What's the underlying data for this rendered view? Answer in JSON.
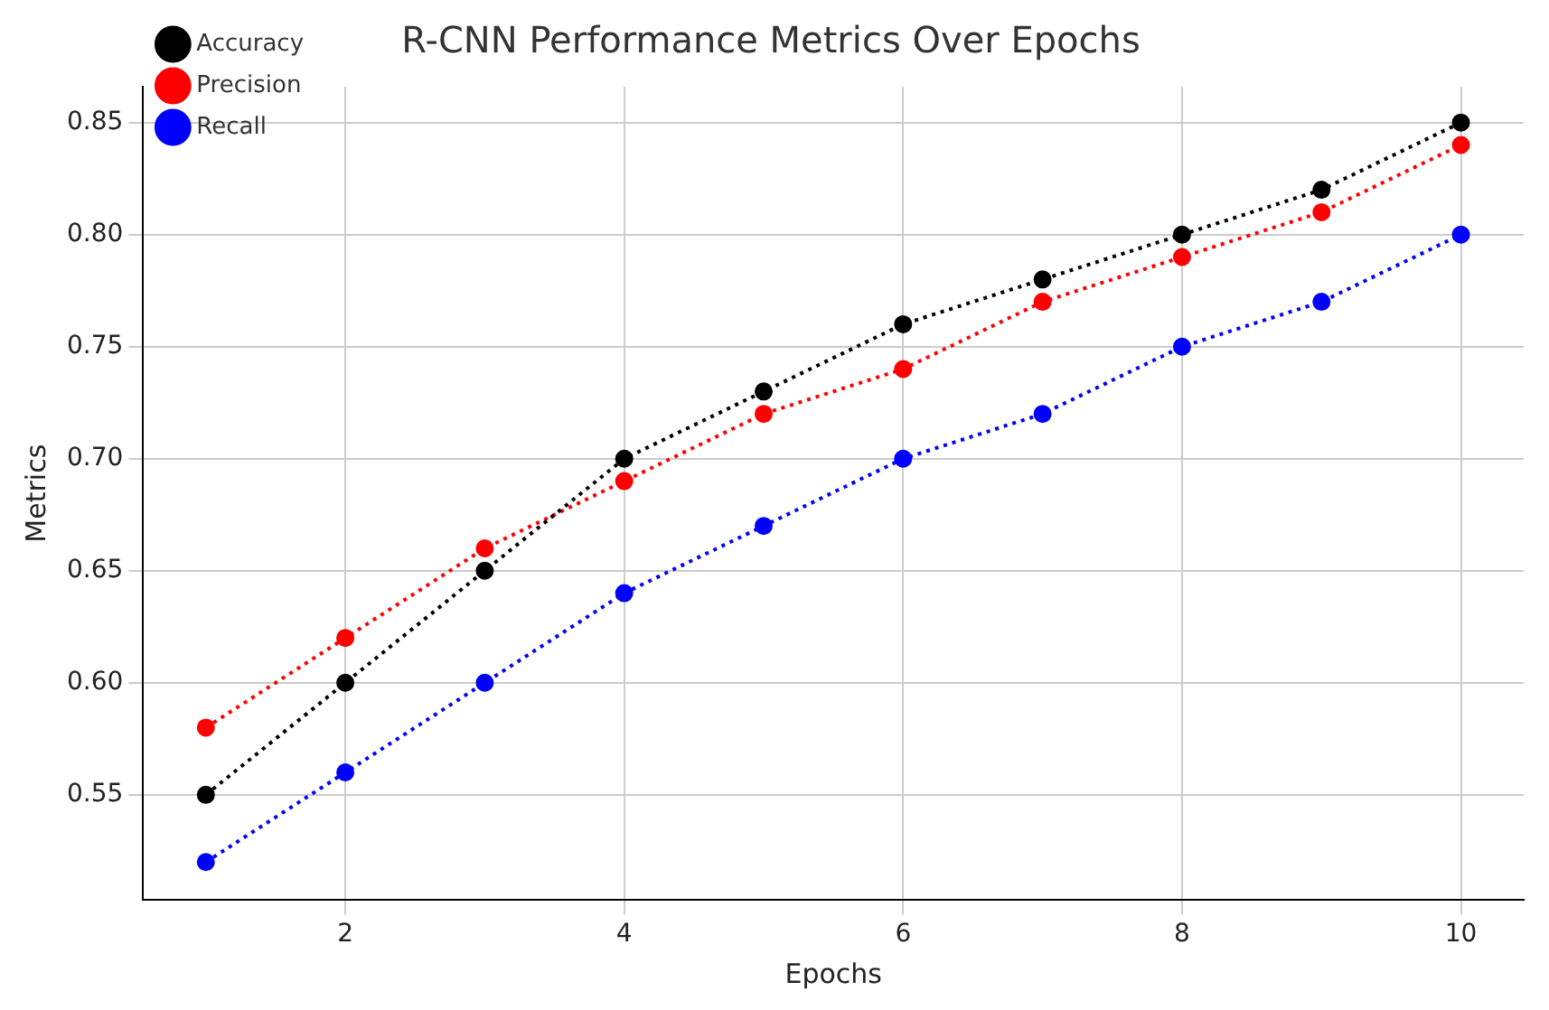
{
  "chart_data": {
    "type": "line",
    "title": "R-CNN Performance Metrics Over Epochs",
    "xlabel": "Epochs",
    "ylabel": "Metrics",
    "x": [
      1,
      2,
      3,
      4,
      5,
      6,
      7,
      8,
      9,
      10
    ],
    "series": [
      {
        "name": "Accuracy",
        "color": "#000000",
        "values": [
          0.55,
          0.6,
          0.65,
          0.7,
          0.73,
          0.76,
          0.78,
          0.8,
          0.82,
          0.85
        ]
      },
      {
        "name": "Precision",
        "color": "#ff0000",
        "values": [
          0.58,
          0.62,
          0.66,
          0.69,
          0.72,
          0.74,
          0.77,
          0.79,
          0.81,
          0.84
        ]
      },
      {
        "name": "Recall",
        "color": "#0000ff",
        "values": [
          0.52,
          0.56,
          0.6,
          0.64,
          0.67,
          0.7,
          0.72,
          0.75,
          0.77,
          0.8
        ]
      }
    ],
    "xlim": [
      0.55,
      10.45
    ],
    "xticks": [
      2,
      4,
      6,
      8,
      10
    ],
    "ylim": [
      0.503,
      0.866
    ],
    "yticks": [
      {
        "value": 0.55,
        "label": "0.55"
      },
      {
        "value": 0.6,
        "label": "0.60"
      },
      {
        "value": 0.65,
        "label": "0.65"
      },
      {
        "value": 0.7,
        "label": "0.70"
      },
      {
        "value": 0.75,
        "label": "0.75"
      },
      {
        "value": 0.8,
        "label": "0.80"
      },
      {
        "value": 0.85,
        "label": "0.85"
      }
    ],
    "grid": true,
    "legend": "top left",
    "marker": "circle",
    "line_style": "dotted"
  }
}
